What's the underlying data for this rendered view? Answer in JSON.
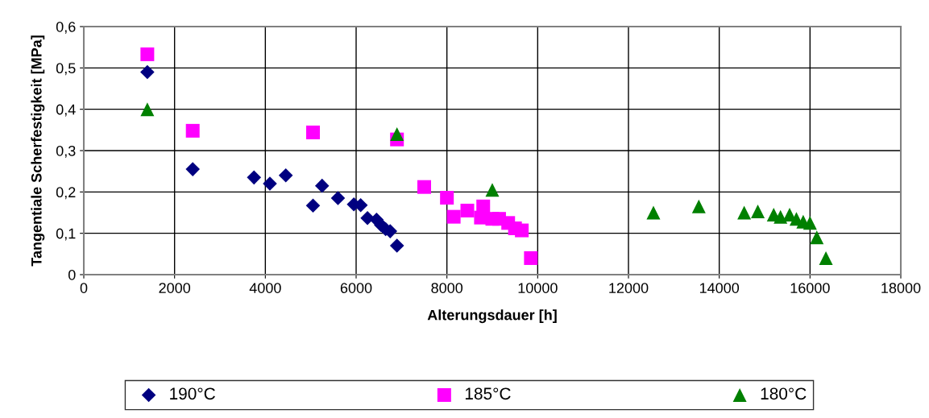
{
  "chart_data": {
    "type": "scatter",
    "xlabel": "Alterungsdauer [h]",
    "ylabel": "Tangentiale Scherfestigkeit [MPa]",
    "xlim": [
      0,
      18000
    ],
    "xticks": [
      0,
      2000,
      4000,
      6000,
      8000,
      10000,
      12000,
      14000,
      16000,
      18000
    ],
    "ylim": [
      0,
      0.6
    ],
    "yticks": [
      {
        "value": 0,
        "label": "0"
      },
      {
        "value": 0.1,
        "label": "0,1"
      },
      {
        "value": 0.2,
        "label": "0,2"
      },
      {
        "value": 0.3,
        "label": "0,3"
      },
      {
        "value": 0.4,
        "label": "0,4"
      },
      {
        "value": 0.5,
        "label": "0,5"
      },
      {
        "value": 0.6,
        "label": "0,6"
      }
    ],
    "grid": true,
    "legend": "bottom",
    "series": [
      {
        "name": "190°C",
        "color": "#000080",
        "marker": "diamond",
        "x": [
          1400,
          2400,
          3750,
          4100,
          4450,
          5050,
          5250,
          5600,
          5950,
          6100,
          6250,
          6450,
          6550,
          6650,
          6750,
          6900
        ],
        "values": [
          0.49,
          0.255,
          0.235,
          0.22,
          0.24,
          0.167,
          0.215,
          0.185,
          0.17,
          0.168,
          0.137,
          0.133,
          0.12,
          0.11,
          0.105,
          0.07
        ]
      },
      {
        "name": "185°C",
        "color": "#ff00ff",
        "marker": "square",
        "x": [
          1400,
          2400,
          5050,
          6900,
          7500,
          8000,
          8150,
          8450,
          8600,
          8750,
          8800,
          9000,
          9150,
          9350,
          9500,
          9650,
          9850
        ],
        "values": [
          0.533,
          0.348,
          0.344,
          0.327,
          0.212,
          0.186,
          0.14,
          0.155,
          null,
          0.138,
          0.165,
          0.135,
          0.135,
          0.125,
          0.112,
          0.107,
          0.04
        ]
      },
      {
        "name": "180°C",
        "color": "#008000",
        "marker": "triangle",
        "x": [
          1400,
          6900,
          9000,
          12550,
          13550,
          14550,
          14850,
          15200,
          15350,
          15550,
          15700,
          15850,
          16000,
          16150,
          16350
        ],
        "values": [
          0.4,
          0.34,
          0.205,
          0.15,
          0.165,
          0.15,
          0.153,
          0.145,
          0.14,
          0.145,
          0.135,
          0.128,
          0.125,
          0.09,
          0.04
        ]
      }
    ]
  }
}
